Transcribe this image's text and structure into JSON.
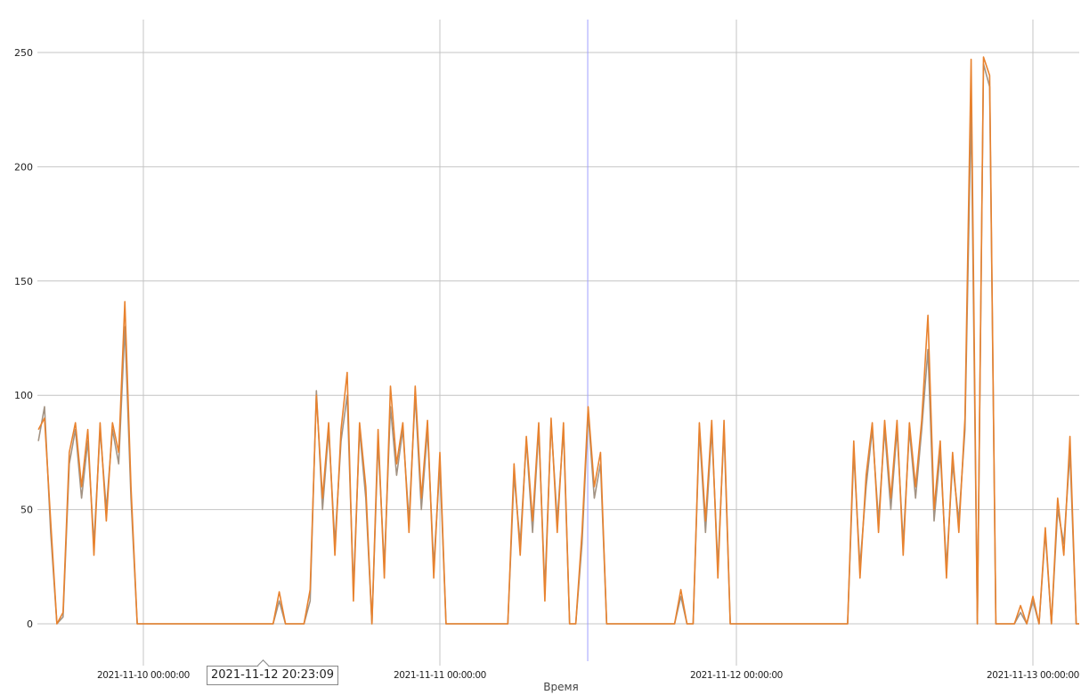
{
  "chart_data": {
    "type": "line",
    "title": "",
    "xlabel": "Время",
    "ylabel": "",
    "x_start": "2021-11-09 15:30:00",
    "x_step_minutes": 30,
    "xlim": [
      "2021-11-09 15:26:00",
      "2021-11-13 03:45:00"
    ],
    "ylim": [
      -30,
      265
    ],
    "y_ticks": [
      0,
      50,
      100,
      150,
      200,
      250
    ],
    "x_ticks": [
      {
        "label": "2021-11-10 00:00:00",
        "day": 1
      },
      {
        "label": "2021-11-11 00:00:00",
        "day": 2
      },
      {
        "label": "2021-11-12 00:00:00",
        "day": 3
      },
      {
        "label": "2021-11-13 00:00:00",
        "day": 4
      }
    ],
    "grid": true,
    "legend": "none",
    "cursor_time": "2021-11-11 11:58:00",
    "series": [
      {
        "color": "#a39383",
        "values": [
          80,
          95,
          40,
          0,
          3,
          70,
          85,
          55,
          80,
          35,
          85,
          50,
          85,
          70,
          130,
          55,
          0,
          0,
          0,
          0,
          0,
          0,
          0,
          0,
          0,
          0,
          0,
          0,
          0,
          0,
          0,
          0,
          0,
          0,
          0,
          0,
          0,
          0,
          0,
          10,
          0,
          0,
          0,
          0,
          10,
          102,
          50,
          85,
          35,
          80,
          100,
          15,
          85,
          55,
          0,
          80,
          25,
          95,
          65,
          85,
          45,
          100,
          50,
          85,
          25,
          70,
          0,
          0,
          0,
          0,
          0,
          0,
          0,
          0,
          0,
          0,
          0,
          65,
          35,
          80,
          40,
          85,
          15,
          88,
          45,
          85,
          0,
          0,
          35,
          92,
          55,
          70,
          0,
          0,
          0,
          0,
          0,
          0,
          0,
          0,
          0,
          0,
          0,
          0,
          12,
          0,
          0,
          85,
          40,
          85,
          25,
          85,
          0,
          0,
          0,
          0,
          0,
          0,
          0,
          0,
          0,
          0,
          0,
          0,
          0,
          0,
          0,
          0,
          0,
          0,
          0,
          0,
          75,
          25,
          60,
          85,
          45,
          85,
          50,
          85,
          35,
          85,
          55,
          85,
          120,
          45,
          75,
          25,
          70,
          45,
          85,
          226,
          0,
          245,
          235,
          0,
          0,
          0,
          0,
          5,
          0,
          10,
          0,
          40,
          0,
          50,
          35,
          75,
          0,
          0
        ]
      },
      {
        "color": "#e8822e",
        "values": [
          85,
          90,
          45,
          0,
          5,
          75,
          88,
          60,
          85,
          30,
          88,
          45,
          88,
          75,
          141,
          60,
          0,
          0,
          0,
          0,
          0,
          0,
          0,
          0,
          0,
          0,
          0,
          0,
          0,
          0,
          0,
          0,
          0,
          0,
          0,
          0,
          0,
          0,
          0,
          14,
          0,
          0,
          0,
          0,
          15,
          100,
          55,
          88,
          30,
          85,
          110,
          10,
          88,
          60,
          0,
          85,
          20,
          104,
          70,
          88,
          40,
          104,
          55,
          89,
          20,
          75,
          0,
          0,
          0,
          0,
          0,
          0,
          0,
          0,
          0,
          0,
          0,
          70,
          30,
          82,
          45,
          88,
          10,
          90,
          40,
          88,
          0,
          0,
          40,
          95,
          60,
          75,
          0,
          0,
          0,
          0,
          0,
          0,
          0,
          0,
          0,
          0,
          0,
          0,
          15,
          0,
          0,
          88,
          45,
          89,
          20,
          89,
          0,
          0,
          0,
          0,
          0,
          0,
          0,
          0,
          0,
          0,
          0,
          0,
          0,
          0,
          0,
          0,
          0,
          0,
          0,
          0,
          80,
          20,
          65,
          88,
          40,
          89,
          55,
          89,
          30,
          88,
          60,
          89,
          135,
          50,
          80,
          20,
          75,
          40,
          90,
          247,
          0,
          248,
          240,
          0,
          0,
          0,
          0,
          8,
          0,
          12,
          0,
          42,
          0,
          55,
          30,
          82,
          0,
          0
        ]
      }
    ]
  },
  "tooltip": {
    "text": "2021-11-12 20:23:09"
  }
}
